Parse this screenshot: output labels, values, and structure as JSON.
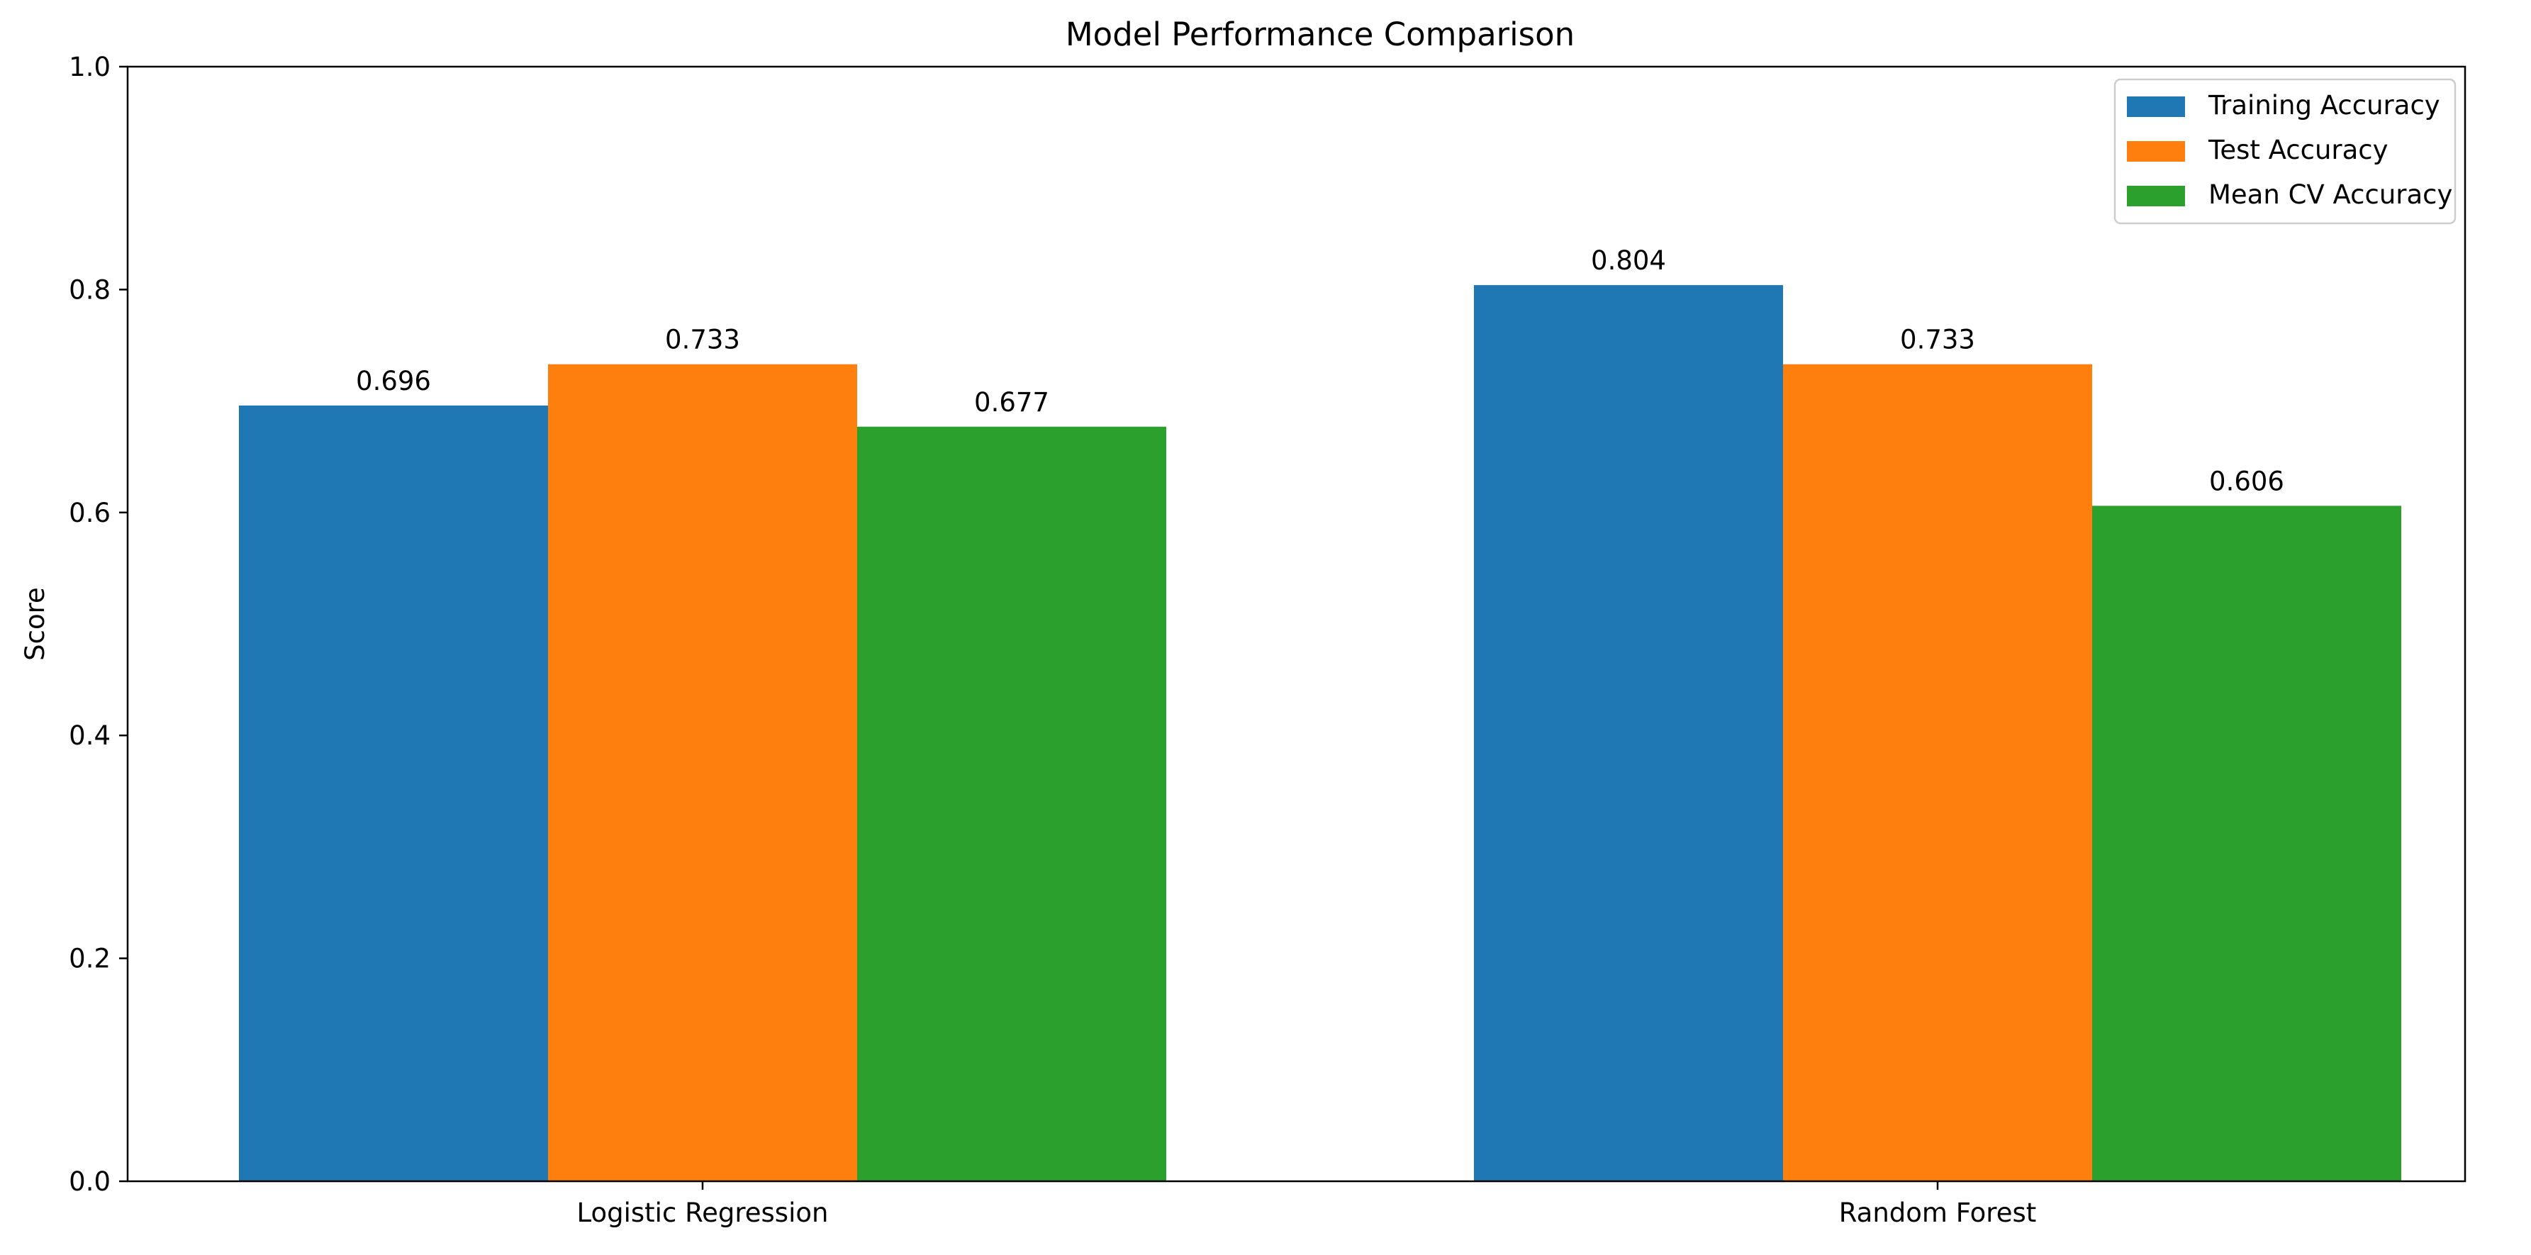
{
  "chart_data": {
    "type": "bar",
    "title": "Model Performance Comparison",
    "xlabel": "",
    "ylabel": "Score",
    "ylim": [
      0,
      1.0
    ],
    "yticks": [
      "0.0",
      "0.2",
      "0.4",
      "0.6",
      "0.8",
      "1.0"
    ],
    "grid": false,
    "legend_position": "top-right",
    "categories": [
      "Logistic Regression",
      "Random Forest"
    ],
    "series": [
      {
        "name": "Training Accuracy",
        "color": "#1f77b4",
        "values": [
          0.696,
          0.804
        ],
        "labels": [
          "0.696",
          "0.804"
        ]
      },
      {
        "name": "Test Accuracy",
        "color": "#ff7f0e",
        "values": [
          0.733,
          0.733
        ],
        "labels": [
          "0.733",
          "0.733"
        ]
      },
      {
        "name": "Mean CV Accuracy",
        "color": "#2ca02c",
        "values": [
          0.677,
          0.606
        ],
        "labels": [
          "0.677",
          "0.606"
        ]
      }
    ]
  }
}
